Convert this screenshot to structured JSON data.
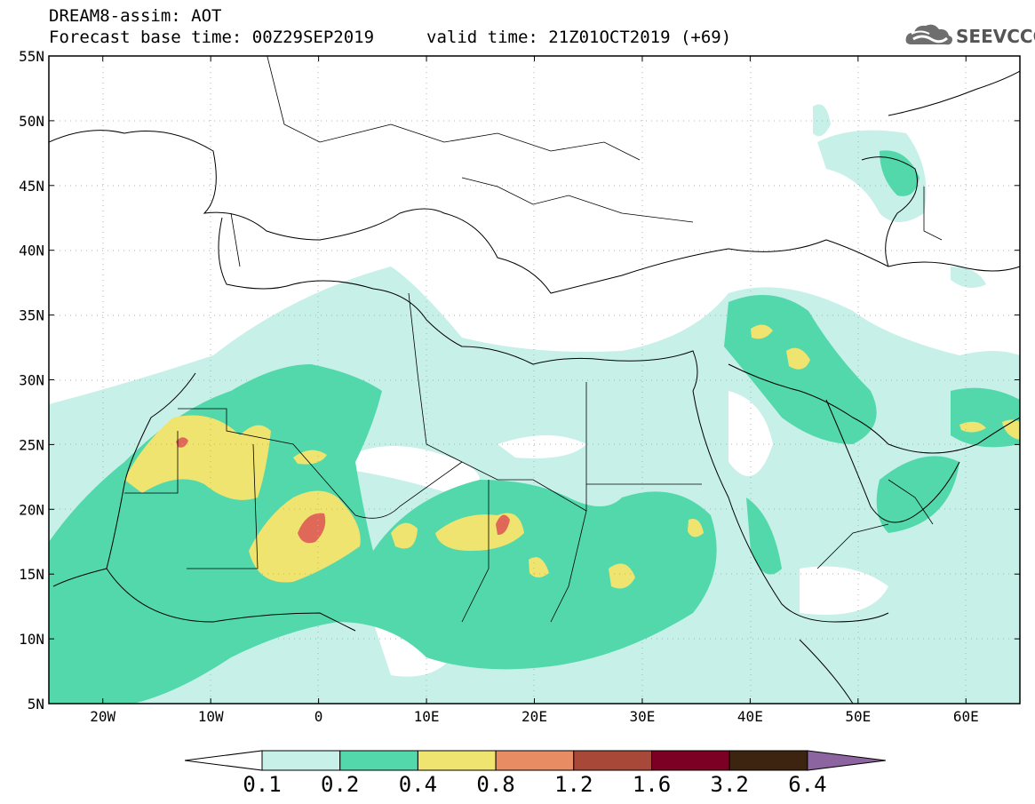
{
  "header": {
    "line1": "DREAM8-assim: AOT",
    "line2": "Forecast base time: 00Z29SEP2019",
    "line3": "valid time: 21Z01OCT2019 (+69)"
  },
  "logo": {
    "text": "SEEVCCC",
    "icon": "cloud-icon"
  },
  "map": {
    "region": "North Africa, Mediterranean, Europe and Middle East",
    "lat_ticks": [
      "55N",
      "50N",
      "45N",
      "40N",
      "35N",
      "30N",
      "25N",
      "20N",
      "15N",
      "10N",
      "5N"
    ],
    "lon_ticks": [
      "20W",
      "10W",
      "0",
      "10E",
      "20E",
      "30E",
      "40E",
      "50E",
      "60E"
    ],
    "lon_range": [
      -25,
      65
    ],
    "lat_range": [
      5,
      55
    ],
    "grid": "dotted"
  },
  "colorbar": {
    "labels": [
      "0.1",
      "0.2",
      "0.4",
      "0.8",
      "1.2",
      "1.6",
      "3.2",
      "6.4"
    ],
    "colors": [
      "#ffffff",
      "#c6f0e8",
      "#52d8aa",
      "#f0e470",
      "#e88c64",
      "#a84838",
      "#7c0024",
      "#3c2410",
      "#8c64a0"
    ]
  }
}
